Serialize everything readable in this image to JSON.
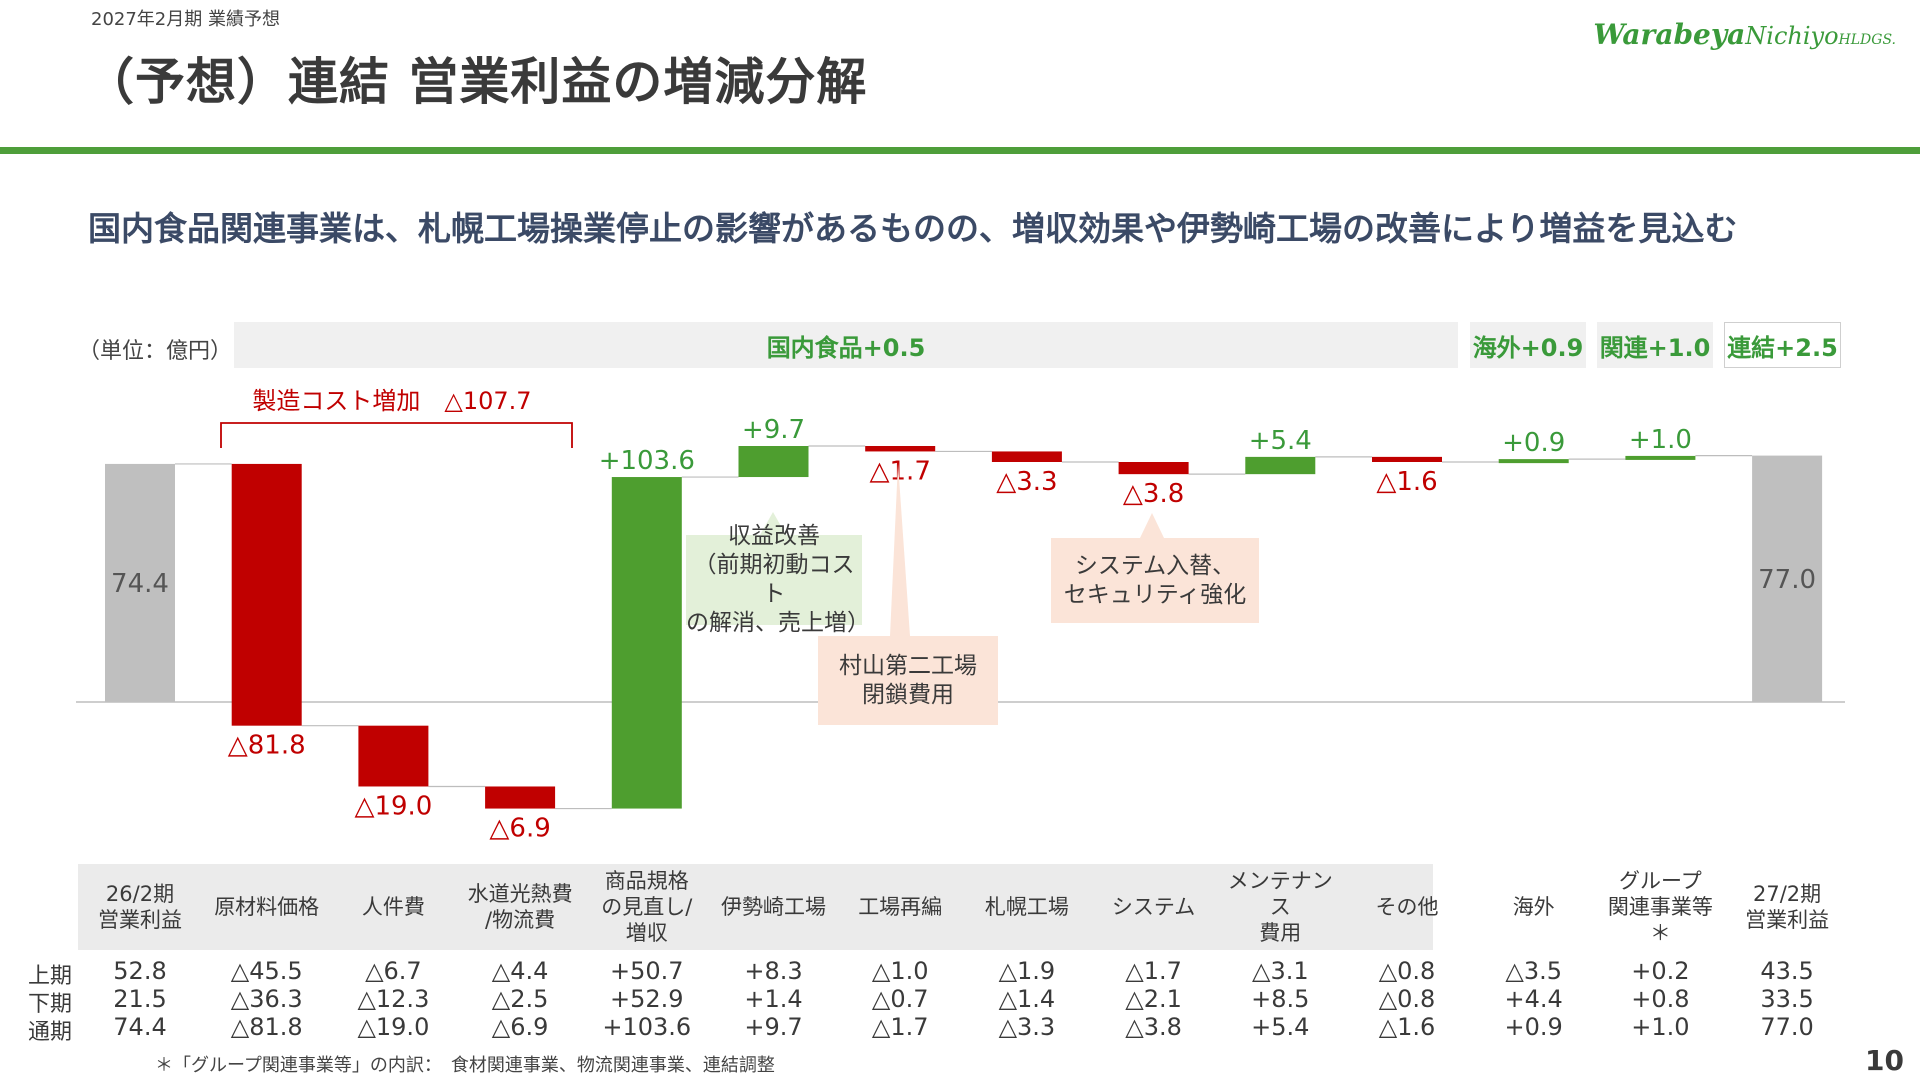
{
  "header": {
    "period": "2027年2月期 業績予想",
    "title": "（予想）連結 営業利益の増減分解",
    "logo_main": "Warabeya",
    "logo_sub": "Nichiyo",
    "logo_suffix": "HLDGS.",
    "subtitle": "国内食品関連事業は、札幌工場操業停止の影響があるものの、増収効果や伊勢崎工場の改善により増益を見込む",
    "unit": "（単位：億円）"
  },
  "segments": {
    "domestic": "国内食品+0.5",
    "overseas": "海外+0.9",
    "affiliate": "関連+1.0",
    "consolidated": "連結+2.5"
  },
  "bracket_label": "製造コスト増加　△107.7",
  "callouts": {
    "revenue": "収益改善\n（前期初動コスト\nの解消、売上増）",
    "murayama": "村山第二工場\n閉鎖費用",
    "system": "システム入替、\nセキュリティ強化"
  },
  "chart_data": {
    "type": "bar",
    "subtype": "waterfall",
    "categories": [
      "26/2期 営業利益",
      "原材料価格",
      "人件費",
      "水道光熱費/物流費",
      "商品規格の見直し/増収",
      "伊勢崎工場",
      "工場再編",
      "札幌工場",
      "システム",
      "メンテナンス費用",
      "その他",
      "海外",
      "グループ関連事業等",
      "27/2期 営業利益"
    ],
    "values": [
      74.4,
      -81.8,
      -19.0,
      -6.9,
      103.6,
      9.7,
      -1.7,
      -3.3,
      -3.8,
      5.4,
      -1.6,
      0.9,
      1.0,
      77.0
    ],
    "labels": [
      "74.4",
      "△81.8",
      "△19.0",
      "△6.9",
      "+103.6",
      "+9.7",
      "△1.7",
      "△3.3",
      "△3.8",
      "+5.4",
      "△1.6",
      "+0.9",
      "+1.0",
      "77.0"
    ],
    "kinds": [
      "total",
      "neg",
      "neg",
      "neg",
      "pos",
      "pos",
      "neg",
      "neg",
      "neg",
      "pos",
      "neg",
      "pos",
      "pos",
      "total"
    ],
    "colors": {
      "total": "#bfbfbf",
      "pos": "#4e9e2f",
      "neg": "#c00000",
      "pos_text": "#3a9a3a",
      "neg_text": "#c00000",
      "total_text": "#555555"
    }
  },
  "table": {
    "headers": [
      "26/2期\n営業利益",
      "原材料価格",
      "人件費",
      "水道光熱費\n/物流費",
      "商品規格\nの見直し/\n増収",
      "伊勢崎工場",
      "工場再編",
      "札幌工場",
      "システム",
      "メンテナンス\n費用",
      "その他",
      "海外",
      "グループ\n関連事業等＊",
      "27/2期\n営業利益"
    ],
    "rows": [
      {
        "label": "上期",
        "values": [
          "52.8",
          "△45.5",
          "△6.7",
          "△4.4",
          "+50.7",
          "+8.3",
          "△1.0",
          "△1.9",
          "△1.7",
          "△3.1",
          "△0.8",
          "△3.5",
          "+0.2",
          "43.5"
        ]
      },
      {
        "label": "下期",
        "values": [
          "21.5",
          "△36.3",
          "△12.3",
          "△2.5",
          "+52.9",
          "+1.4",
          "△0.7",
          "△1.4",
          "△2.1",
          "+8.5",
          "△0.8",
          "+4.4",
          "+0.8",
          "33.5"
        ]
      },
      {
        "label": "通期",
        "values": [
          "74.4",
          "△81.8",
          "△19.0",
          "△6.9",
          "+103.6",
          "+9.7",
          "△1.7",
          "△3.3",
          "△3.8",
          "+5.4",
          "△1.6",
          "+0.9",
          "+1.0",
          "77.0"
        ]
      }
    ]
  },
  "footnote": "＊「グループ関連事業等」の内訳：　食材関連事業、物流関連事業、連結調整",
  "page_number": "10"
}
